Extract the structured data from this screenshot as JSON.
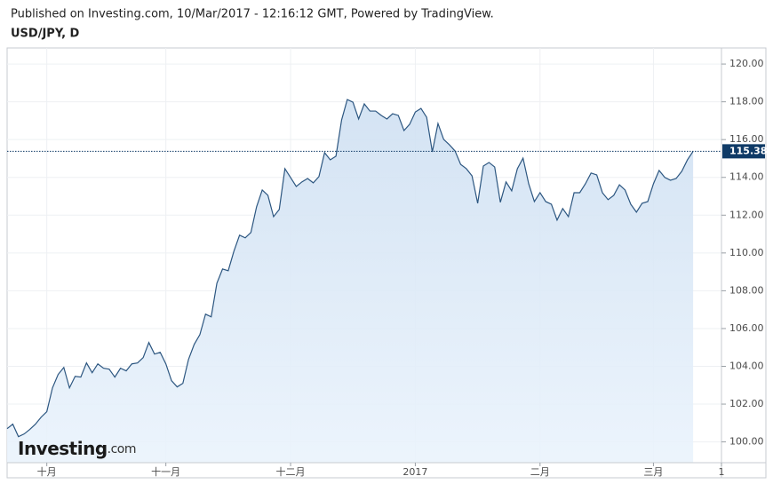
{
  "header": "Published on Investing.com, 10/Mar/2017 - 12:16:12 GMT, Powered by TradingView.",
  "logo": {
    "name": "Investing",
    "suffix": ".com"
  },
  "chart_data": {
    "type": "area",
    "title": "USD/JPY, D",
    "series": [
      {
        "name": "USD/JPY",
        "color": "#2c5680",
        "values": [
          100.7,
          100.94,
          100.28,
          100.42,
          100.66,
          100.94,
          101.31,
          101.6,
          102.86,
          103.57,
          103.94,
          102.86,
          103.47,
          103.43,
          104.18,
          103.66,
          104.13,
          103.9,
          103.85,
          103.43,
          103.9,
          103.76,
          104.13,
          104.18,
          104.46,
          105.26,
          104.65,
          104.74,
          104.13,
          103.24,
          102.91,
          103.1,
          104.37,
          105.16,
          105.68,
          106.76,
          106.62,
          108.4,
          109.15,
          109.06,
          110.09,
          110.94,
          110.8,
          111.08,
          112.44,
          113.33,
          113.05,
          111.92,
          112.3,
          114.46,
          113.99,
          113.52,
          113.76,
          113.94,
          113.71,
          114.04,
          115.31,
          114.93,
          115.12,
          117.04,
          118.12,
          117.98,
          117.09,
          117.89,
          117.51,
          117.51,
          117.28,
          117.09,
          117.37,
          117.28,
          116.48,
          116.81,
          117.46,
          117.65,
          117.18,
          115.35,
          116.85,
          116.01,
          115.73,
          115.4,
          114.69,
          114.46,
          114.08,
          112.63,
          114.6,
          114.79,
          114.55,
          112.68,
          113.76,
          113.29,
          114.46,
          115.02,
          113.66,
          112.72,
          113.19,
          112.72,
          112.58,
          111.74,
          112.35,
          111.92,
          113.19,
          113.19,
          113.66,
          114.23,
          114.13,
          113.19,
          112.82,
          113.05,
          113.61,
          113.33,
          112.58,
          112.16,
          112.63,
          112.72,
          113.66,
          114.37,
          114.0,
          113.85,
          113.94,
          114.32,
          114.93,
          115.38
        ]
      }
    ],
    "xlim": [
      0,
      126
    ],
    "xticks": [
      {
        "value": 7,
        "label": "十月"
      },
      {
        "value": 28,
        "label": "十一月"
      },
      {
        "value": 50,
        "label": "十二月"
      },
      {
        "value": 72,
        "label": "2017"
      },
      {
        "value": 94,
        "label": "二月"
      },
      {
        "value": 114,
        "label": "三月"
      },
      {
        "value": 126,
        "label": "1"
      }
    ],
    "ylim": [
      98.9,
      120.85
    ],
    "yticks": [
      {
        "value": 100,
        "label": "100.00"
      },
      {
        "value": 102,
        "label": "102.00"
      },
      {
        "value": 104,
        "label": "104.00"
      },
      {
        "value": 106,
        "label": "106.00"
      },
      {
        "value": 108,
        "label": "108.00"
      },
      {
        "value": 110,
        "label": "110.00"
      },
      {
        "value": 112,
        "label": "112.00"
      },
      {
        "value": 114,
        "label": "114.00"
      },
      {
        "value": 116,
        "label": "116.00"
      },
      {
        "value": 118,
        "label": "118.00"
      },
      {
        "value": 120,
        "label": "120.00"
      }
    ],
    "grid": true,
    "last_price_color": "#0f3a66"
  }
}
